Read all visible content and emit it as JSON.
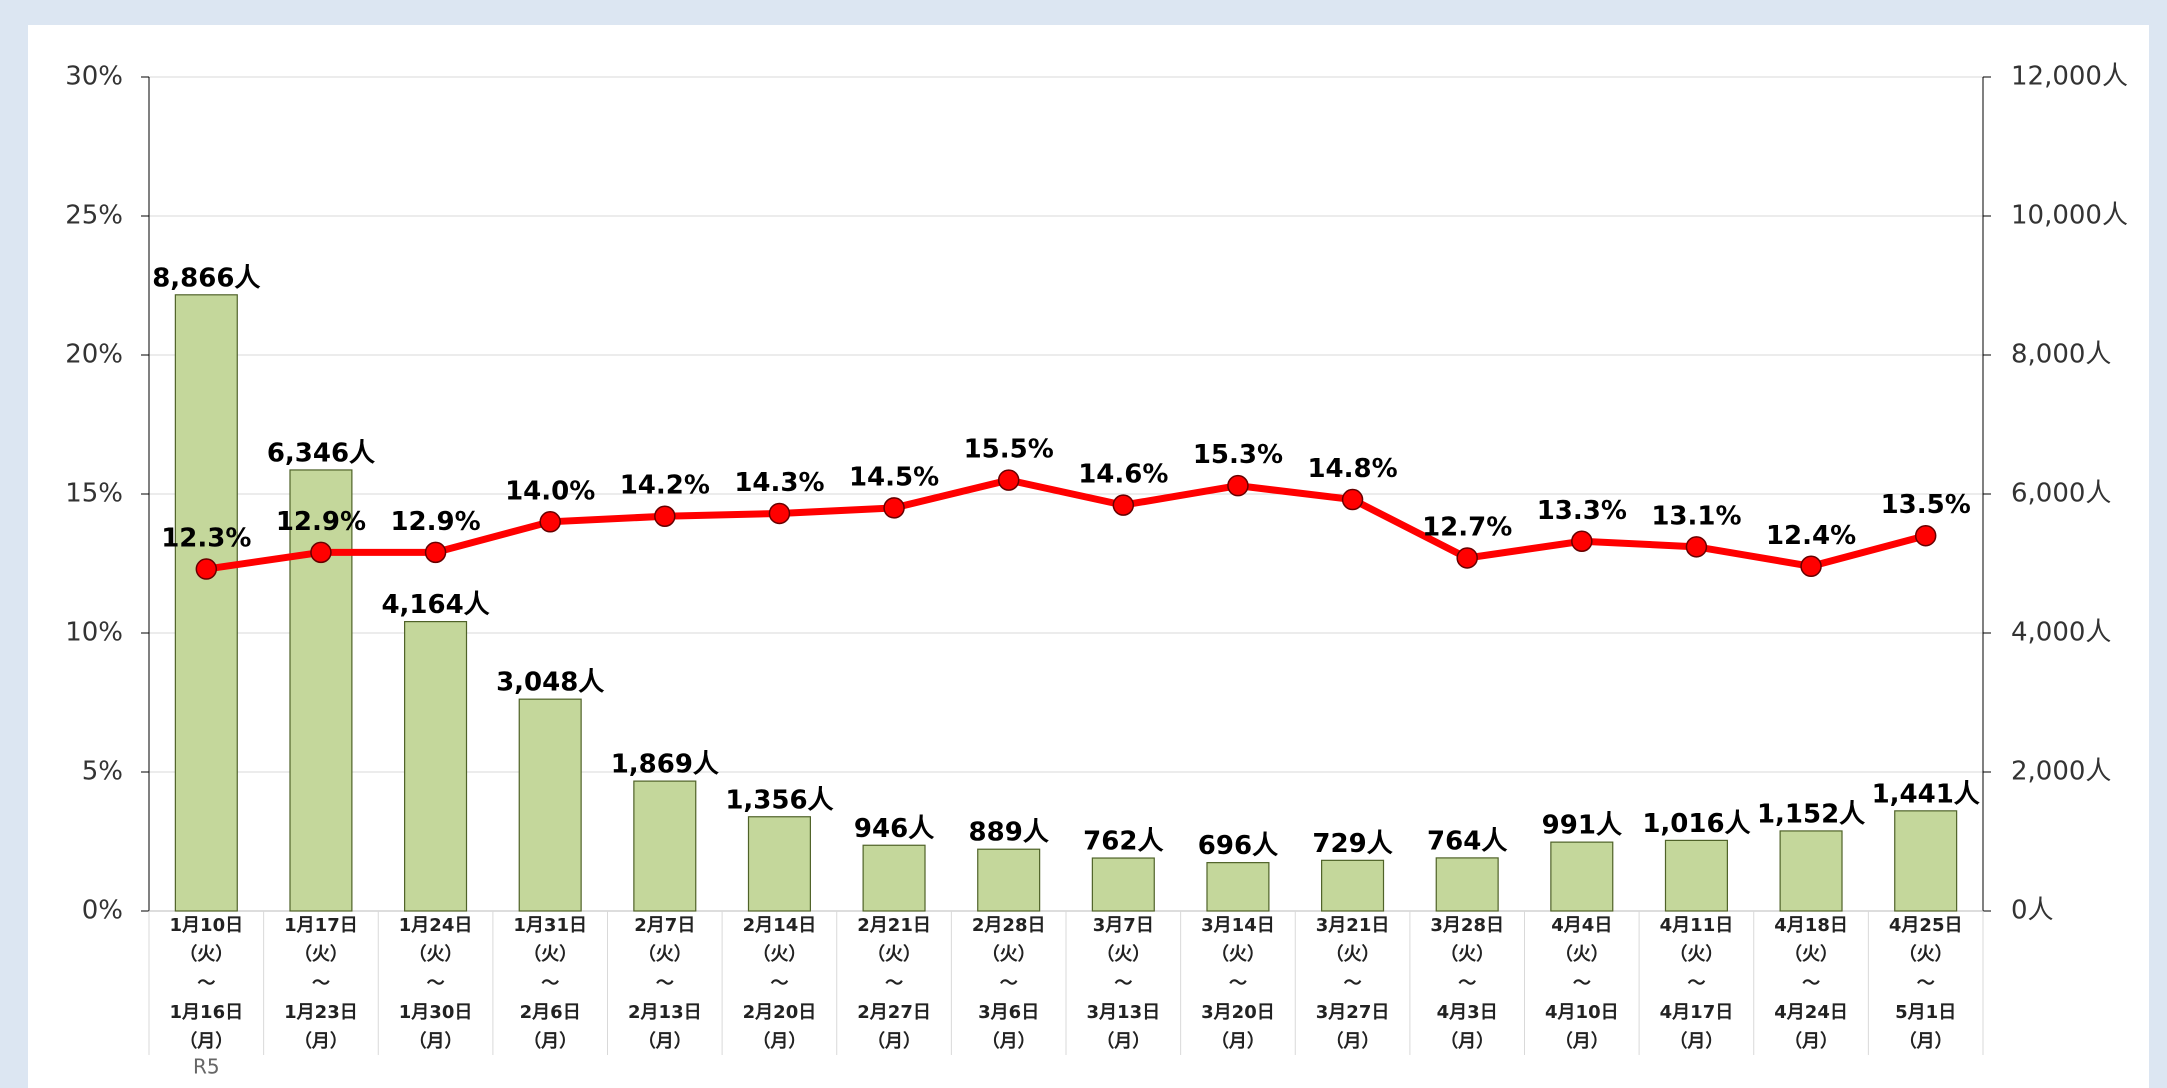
{
  "chart_data": {
    "type": "bar-line",
    "categories": [
      [
        "1月10日",
        "（火）",
        "～",
        "1月16日",
        "（月）"
      ],
      [
        "1月17日",
        "（火）",
        "～",
        "1月23日",
        "（月）"
      ],
      [
        "1月24日",
        "（火）",
        "～",
        "1月30日",
        "（月）"
      ],
      [
        "1月31日",
        "（火）",
        "～",
        "2月6日",
        "（月）"
      ],
      [
        "2月7日",
        "（火）",
        "～",
        "2月13日",
        "（月）"
      ],
      [
        "2月14日",
        "（火）",
        "～",
        "2月20日",
        "（月）"
      ],
      [
        "2月21日",
        "（火）",
        "～",
        "2月27日",
        "（月）"
      ],
      [
        "2月28日",
        "（火）",
        "～",
        "3月6日",
        "（月）"
      ],
      [
        "3月7日",
        "（火）",
        "～",
        "3月13日",
        "（月）"
      ],
      [
        "3月14日",
        "（火）",
        "～",
        "3月20日",
        "（月）"
      ],
      [
        "3月21日",
        "（火）",
        "～",
        "3月27日",
        "（月）"
      ],
      [
        "3月28日",
        "（火）",
        "～",
        "4月3日",
        "（月）"
      ],
      [
        "4月4日",
        "（火）",
        "～",
        "4月10日",
        "（月）"
      ],
      [
        "4月11日",
        "（火）",
        "～",
        "4月17日",
        "（月）"
      ],
      [
        "4月18日",
        "（火）",
        "～",
        "4月24日",
        "（月）"
      ],
      [
        "4月25日",
        "（火）",
        "～",
        "5月1日",
        "（月）"
      ]
    ],
    "annotation": "R5",
    "series": [
      {
        "type": "bar",
        "axis": "y2",
        "color": "#c4d79b",
        "values": [
          8866,
          6346,
          4164,
          3048,
          1869,
          1356,
          946,
          889,
          762,
          696,
          729,
          764,
          991,
          1016,
          1152,
          1441
        ],
        "value_labels": [
          "8,866人",
          "6,346人",
          "4,164人",
          "3,048人",
          "1,869人",
          "1,356人",
          "946人",
          "889人",
          "762人",
          "696人",
          "729人",
          "764人",
          "991人",
          "1,016人",
          "1,152人",
          "1,441人"
        ]
      },
      {
        "type": "line",
        "axis": "y",
        "color": "#ff0000",
        "values": [
          12.3,
          12.9,
          12.9,
          14.0,
          14.2,
          14.3,
          14.5,
          15.5,
          14.6,
          15.3,
          14.8,
          12.7,
          13.3,
          13.1,
          12.4,
          13.5
        ],
        "value_labels": [
          "12.3%",
          "12.9%",
          "12.9%",
          "14.0%",
          "14.2%",
          "14.3%",
          "14.5%",
          "15.5%",
          "14.6%",
          "15.3%",
          "14.8%",
          "12.7%",
          "13.3%",
          "13.1%",
          "12.4%",
          "13.5%"
        ]
      }
    ],
    "ylim": [
      0,
      30
    ],
    "yticks": [
      {
        "value": 0,
        "label": "0%"
      },
      {
        "value": 5,
        "label": "5%"
      },
      {
        "value": 10,
        "label": "10%"
      },
      {
        "value": 15,
        "label": "15%"
      },
      {
        "value": 20,
        "label": "20%"
      },
      {
        "value": 25,
        "label": "25%"
      },
      {
        "value": 30,
        "label": "30%"
      }
    ],
    "y2lim": [
      0,
      12000
    ],
    "y2ticks": [
      {
        "value": 0,
        "label": "0人"
      },
      {
        "value": 2000,
        "label": "2,000人"
      },
      {
        "value": 4000,
        "label": "4,000人"
      },
      {
        "value": 6000,
        "label": "6,000人"
      },
      {
        "value": 8000,
        "label": "8,000人"
      },
      {
        "value": 10000,
        "label": "10,000人"
      },
      {
        "value": 12000,
        "label": "12,000人"
      }
    ],
    "grid": true
  }
}
